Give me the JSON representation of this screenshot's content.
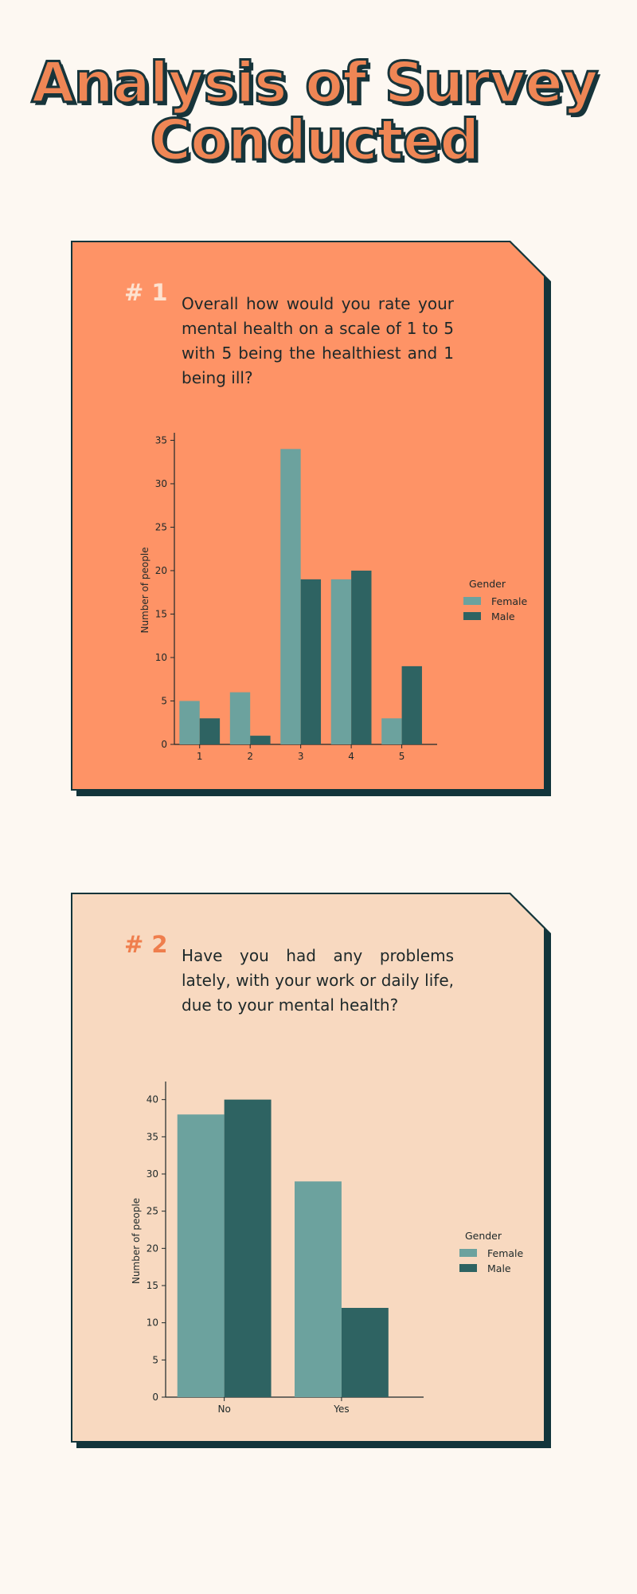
{
  "title": {
    "line1": "Analysis of Survey",
    "line2": "Conducted"
  },
  "colors": {
    "female": "#6ca29e",
    "male": "#2e6362",
    "card1_bg": "#fe9366",
    "card2_bg": "#f8d9c0",
    "title": "#ef8655"
  },
  "cards": [
    {
      "number": "# 1",
      "question": "Overall how would you rate your mental health on a scale of 1 to 5 with 5 being the healthiest and 1 being ill?"
    },
    {
      "number": "# 2",
      "question": "Have you had any problems lately, with your work or daily life, due to your mental health?"
    }
  ],
  "chart_data": [
    {
      "type": "bar",
      "categories": [
        "1",
        "2",
        "3",
        "4",
        "5"
      ],
      "series": [
        {
          "name": "Female",
          "values": [
            5,
            6,
            34,
            19,
            3
          ]
        },
        {
          "name": "Male",
          "values": [
            3,
            1,
            19,
            20,
            9
          ]
        }
      ],
      "ylabel": "Number of people",
      "xlabel": "",
      "ylim": [
        0,
        35.5
      ],
      "yticks": [
        0,
        5,
        10,
        15,
        20,
        25,
        30,
        35
      ],
      "legend_title": "Gender",
      "legend_position": "right",
      "grid": false
    },
    {
      "type": "bar",
      "categories": [
        "No",
        "Yes"
      ],
      "series": [
        {
          "name": "Female",
          "values": [
            38,
            29
          ]
        },
        {
          "name": "Male",
          "values": [
            40,
            12
          ]
        }
      ],
      "ylabel": "Number of people",
      "xlabel": "",
      "ylim": [
        0,
        42
      ],
      "yticks": [
        0,
        5,
        10,
        15,
        20,
        25,
        30,
        35,
        40
      ],
      "legend_title": "Gender",
      "legend_position": "right",
      "grid": false
    }
  ]
}
